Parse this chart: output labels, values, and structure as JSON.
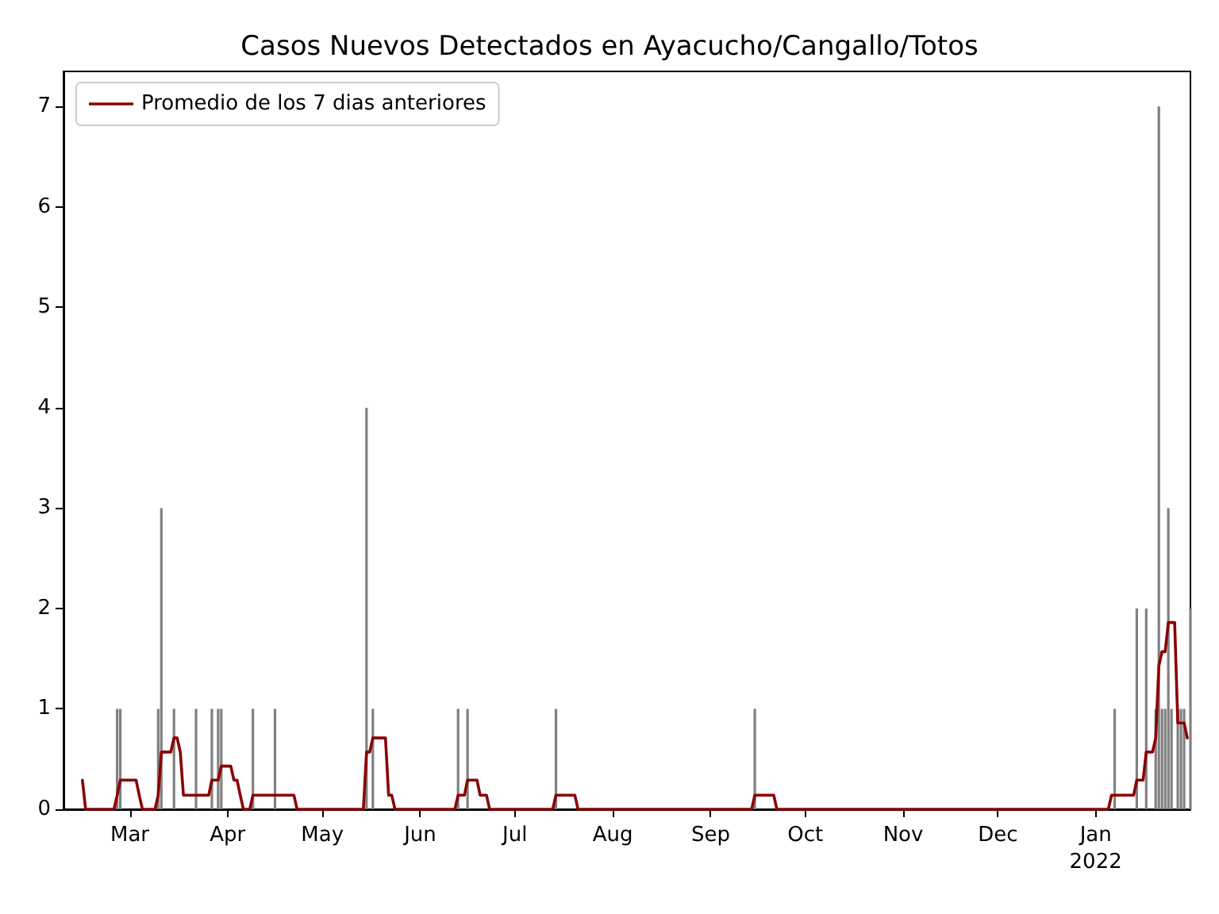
{
  "chart_data": {
    "type": "bar",
    "title": "Casos Nuevos Detectados en Ayacucho/Cangallo/Totos",
    "xlim": [
      "2021-02-08",
      "2022-01-31"
    ],
    "xticks": [
      {
        "value": "2021-03-01",
        "label": "Mar"
      },
      {
        "value": "2021-04-01",
        "label": "Apr"
      },
      {
        "value": "2021-05-01",
        "label": "May"
      },
      {
        "value": "2021-06-01",
        "label": "Jun"
      },
      {
        "value": "2021-07-01",
        "label": "Jul"
      },
      {
        "value": "2021-08-01",
        "label": "Aug"
      },
      {
        "value": "2021-09-01",
        "label": "Sep"
      },
      {
        "value": "2021-10-01",
        "label": "Oct"
      },
      {
        "value": "2021-11-01",
        "label": "Nov"
      },
      {
        "value": "2021-12-01",
        "label": "Dec"
      },
      {
        "value": "2022-01-01",
        "label": "Jan\n2022"
      }
    ],
    "ylim": [
      0,
      7.35
    ],
    "yticks": [
      0,
      1,
      2,
      3,
      4,
      5,
      6,
      7
    ],
    "legend": "top left",
    "series": [
      {
        "color": "#808080",
        "x": [
          "2021-02-25",
          "2021-02-26",
          "2021-03-10",
          "2021-03-11",
          "2021-03-15",
          "2021-03-22",
          "2021-03-27",
          "2021-03-29",
          "2021-03-30",
          "2021-04-09",
          "2021-04-16",
          "2021-05-15",
          "2021-05-17",
          "2021-06-13",
          "2021-06-16",
          "2021-07-14",
          "2021-09-15",
          "2022-01-07",
          "2022-01-14",
          "2022-01-17",
          "2022-01-20",
          "2022-01-21",
          "2022-01-22",
          "2022-01-23",
          "2022-01-24",
          "2022-01-25",
          "2022-01-27",
          "2022-01-28",
          "2022-01-29",
          "2022-01-31"
        ],
        "values": [
          1,
          1,
          1,
          3,
          1,
          1,
          1,
          1,
          1,
          1,
          1,
          4,
          1,
          1,
          1,
          1,
          1,
          1,
          2,
          2,
          1,
          7,
          1,
          1,
          3,
          1,
          1,
          1,
          1,
          2
        ]
      },
      {
        "type": "line",
        "name": "Promedio de los 7 dias anteriores",
        "color": "#8b0000",
        "marker": "none",
        "line_style": "solid",
        "x": [
          "2021-02-14",
          "2021-02-15",
          "2021-02-24",
          "2021-02-25",
          "2021-02-26",
          "2021-03-03",
          "2021-03-04",
          "2021-03-05",
          "2021-03-09",
          "2021-03-10",
          "2021-03-11",
          "2021-03-14",
          "2021-03-15",
          "2021-03-16",
          "2021-03-17",
          "2021-03-18",
          "2021-03-26",
          "2021-03-27",
          "2021-03-29",
          "2021-03-30",
          "2021-04-02",
          "2021-04-03",
          "2021-04-04",
          "2021-04-05",
          "2021-04-06",
          "2021-04-08",
          "2021-04-09",
          "2021-04-22",
          "2021-04-23",
          "2021-05-14",
          "2021-05-15",
          "2021-05-16",
          "2021-05-17",
          "2021-05-21",
          "2021-05-22",
          "2021-05-23",
          "2021-05-24",
          "2021-06-12",
          "2021-06-13",
          "2021-06-15",
          "2021-06-16",
          "2021-06-19",
          "2021-06-20",
          "2021-06-22",
          "2021-06-23",
          "2021-07-13",
          "2021-07-14",
          "2021-07-20",
          "2021-07-21",
          "2021-09-14",
          "2021-09-15",
          "2021-09-21",
          "2021-09-22",
          "2022-01-05",
          "2022-01-06",
          "2022-01-13",
          "2022-01-14",
          "2022-01-16",
          "2022-01-17",
          "2022-01-19",
          "2022-01-20",
          "2022-01-21",
          "2022-01-22",
          "2022-01-23",
          "2022-01-24",
          "2022-01-26",
          "2022-01-27",
          "2022-01-29",
          "2022-01-30"
        ],
        "values": [
          0.29,
          0,
          0,
          0.14,
          0.29,
          0.29,
          0.14,
          0,
          0,
          0.14,
          0.57,
          0.57,
          0.71,
          0.71,
          0.57,
          0.14,
          0.14,
          0.29,
          0.29,
          0.43,
          0.43,
          0.29,
          0.29,
          0.14,
          0,
          0,
          0.14,
          0.14,
          0,
          0,
          0.57,
          0.57,
          0.71,
          0.71,
          0.14,
          0.14,
          0,
          0,
          0.14,
          0.14,
          0.29,
          0.29,
          0.14,
          0.14,
          0,
          0,
          0.14,
          0.14,
          0,
          0,
          0.14,
          0.14,
          0,
          0,
          0.14,
          0.14,
          0.29,
          0.29,
          0.57,
          0.57,
          0.71,
          1.43,
          1.57,
          1.57,
          1.86,
          1.86,
          0.86,
          0.86,
          0.71
        ]
      }
    ]
  }
}
